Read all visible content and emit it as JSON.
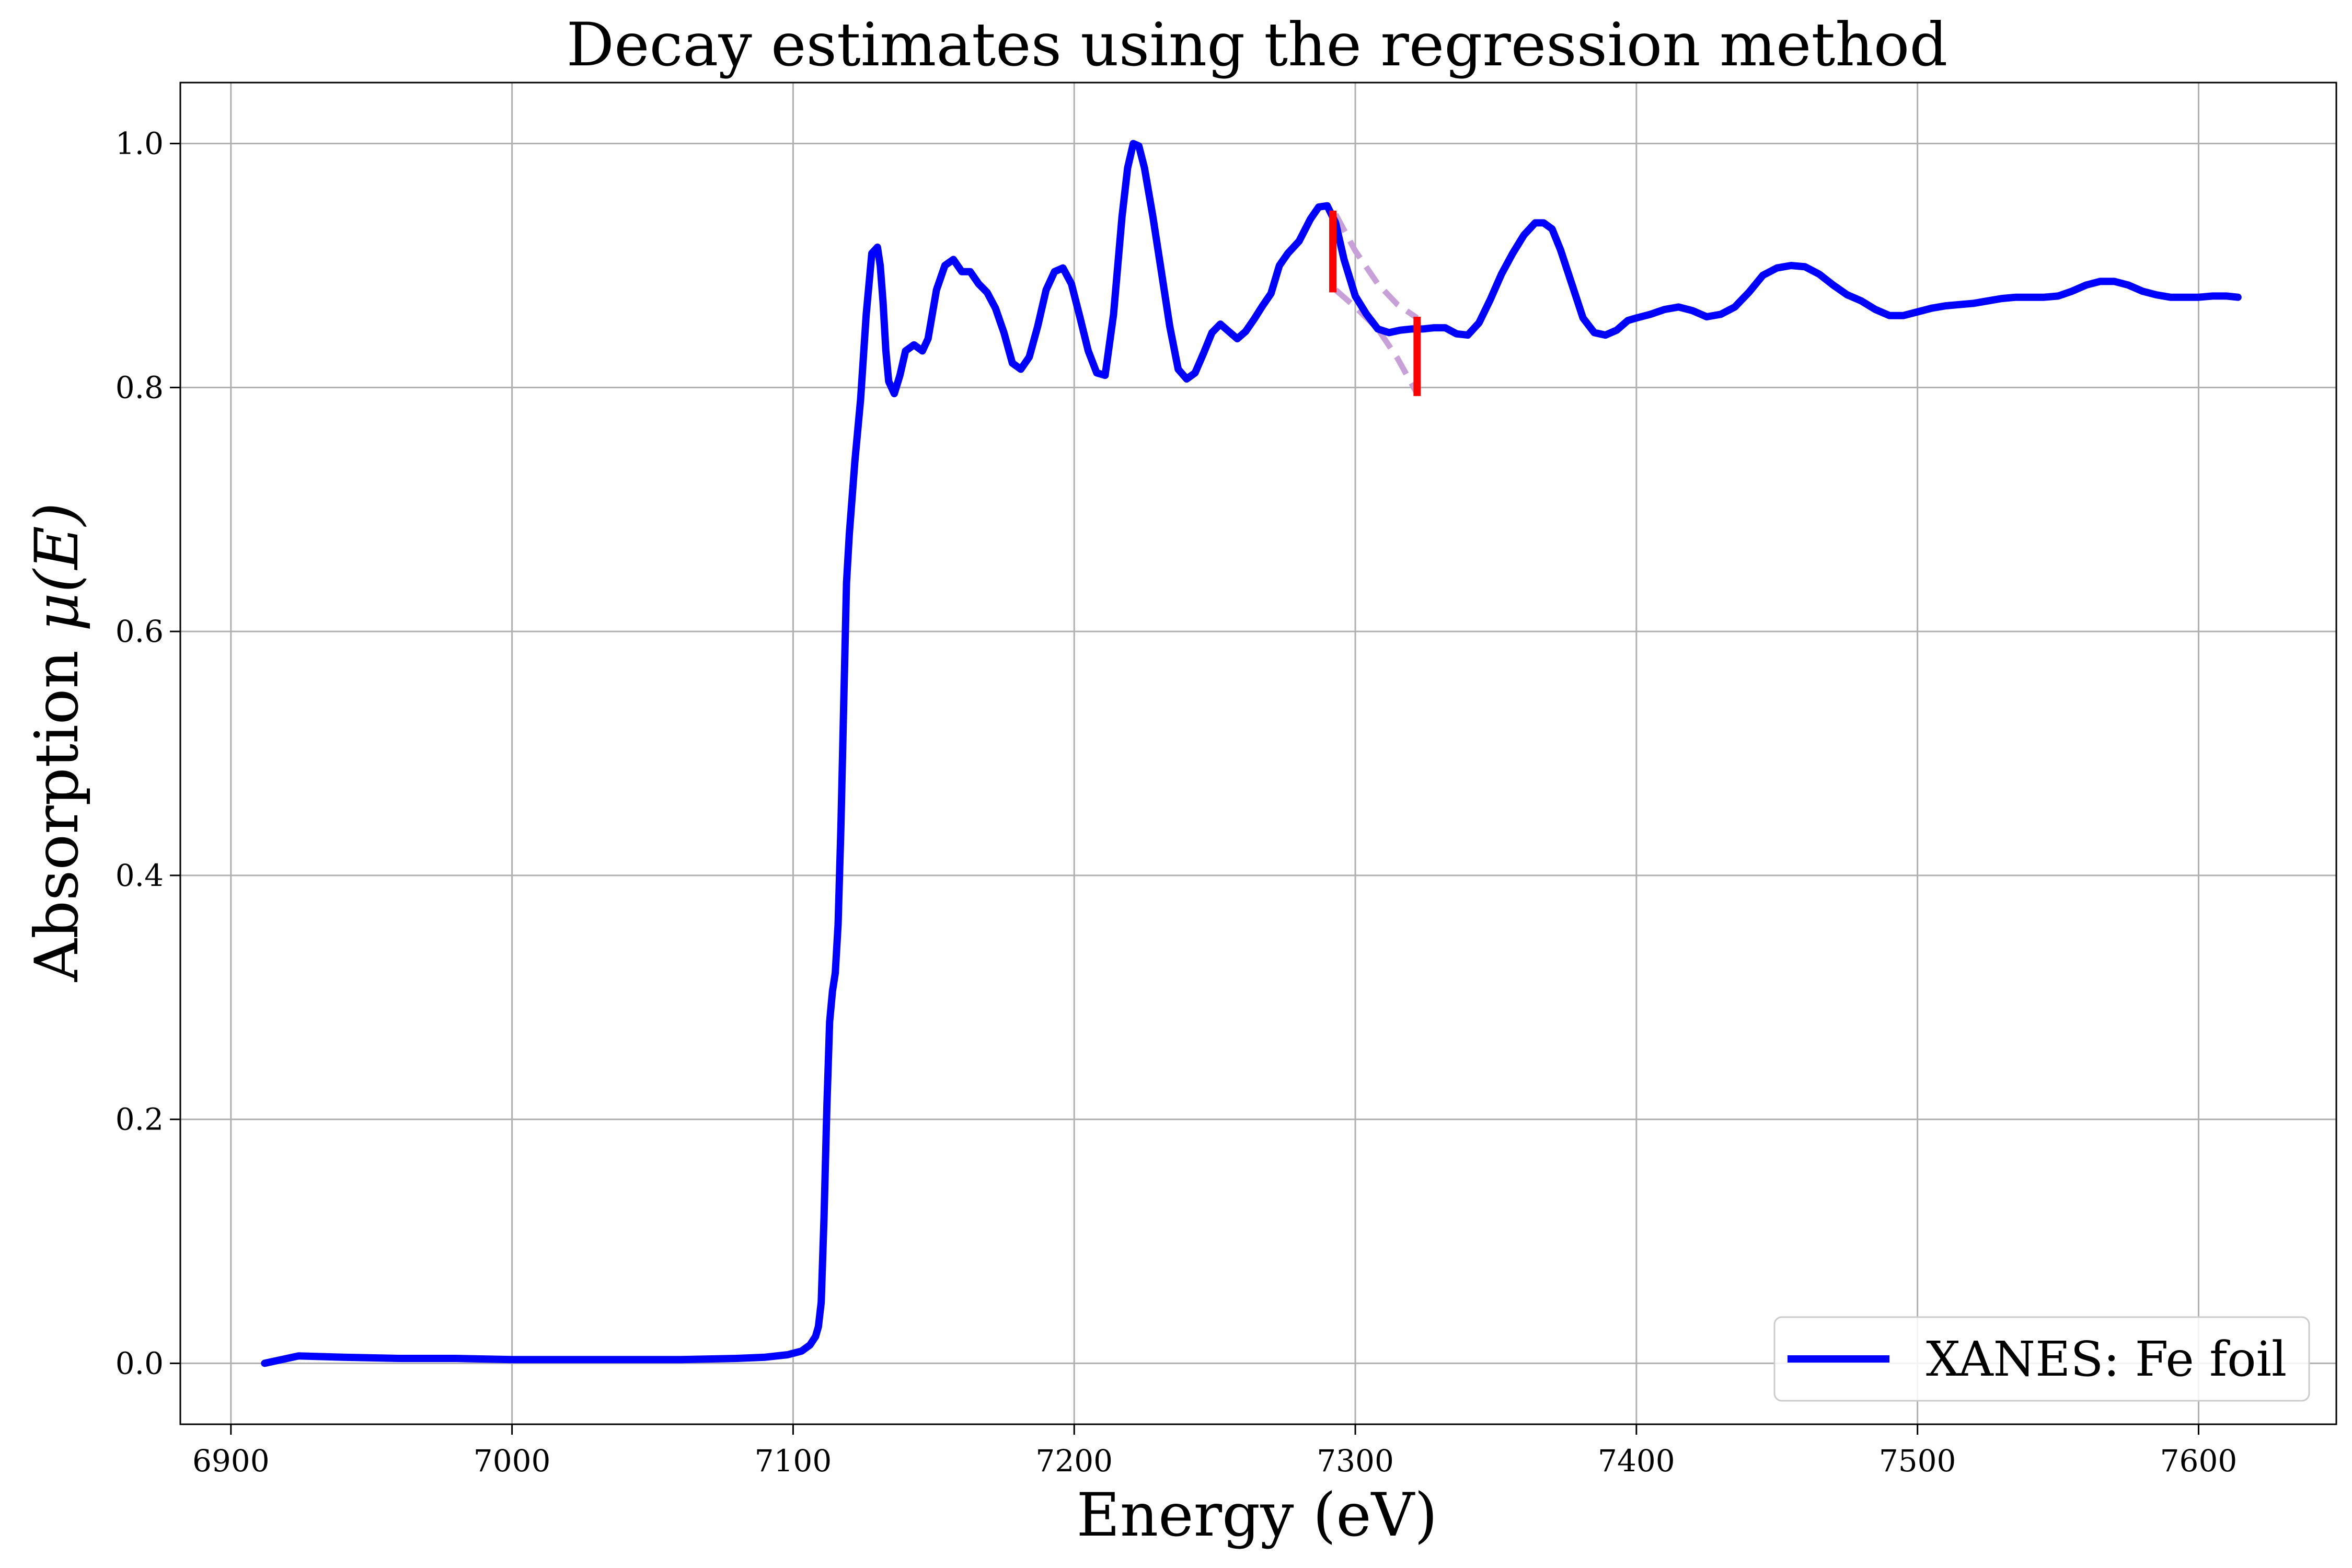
{
  "chart_data": {
    "type": "line",
    "title": "Decay estimates using the regression method",
    "xlabel": "Energy (eV)",
    "ylabel_text": "Absorption ",
    "ylabel_math": "μ(E)",
    "xlim": [
      6882,
      7649
    ],
    "ylim": [
      -0.05,
      1.05
    ],
    "xticks": [
      6900,
      7000,
      7100,
      7200,
      7300,
      7400,
      7500,
      7600
    ],
    "yticks": [
      0.0,
      0.2,
      0.4,
      0.6,
      0.8,
      1.0
    ],
    "grid": true,
    "legend_position": "lower-right",
    "series": [
      {
        "name": "XANES: Fe foil",
        "color": "#0000ff",
        "style": "solid",
        "x": [
          6912,
          6924,
          6940,
          6960,
          6980,
          7000,
          7020,
          7040,
          7060,
          7080,
          7090,
          7098,
          7103,
          7106,
          7108,
          7109,
          7110,
          7111,
          7112,
          7113,
          7114,
          7115,
          7116,
          7117,
          7118,
          7119,
          7120,
          7122,
          7124,
          7126,
          7128,
          7130,
          7131,
          7132,
          7133,
          7134,
          7136,
          7138,
          7140,
          7143,
          7146,
          7148,
          7151,
          7154,
          7157,
          7160,
          7163,
          7166,
          7169,
          7172,
          7175,
          7178,
          7181,
          7184,
          7187,
          7190,
          7193,
          7196,
          7199,
          7202,
          7205,
          7208,
          7211,
          7214,
          7217,
          7219,
          7221,
          7223,
          7225,
          7228,
          7231,
          7234,
          7237,
          7240,
          7243,
          7246,
          7249,
          7252,
          7255,
          7258,
          7261,
          7264,
          7267,
          7270,
          7273,
          7276,
          7280,
          7284,
          7287,
          7290,
          7293,
          7296,
          7300,
          7304,
          7308,
          7312,
          7316,
          7320,
          7324,
          7328,
          7332,
          7336,
          7340,
          7344,
          7348,
          7352,
          7356,
          7360,
          7364,
          7367,
          7370,
          7373,
          7377,
          7381,
          7385,
          7389,
          7393,
          7397,
          7400,
          7405,
          7410,
          7415,
          7420,
          7425,
          7430,
          7435,
          7440,
          7445,
          7450,
          7455,
          7460,
          7465,
          7470,
          7475,
          7480,
          7485,
          7490,
          7495,
          7500,
          7505,
          7510,
          7515,
          7520,
          7525,
          7530,
          7535,
          7540,
          7545,
          7550,
          7555,
          7560,
          7565,
          7570,
          7575,
          7580,
          7585,
          7590,
          7595,
          7600,
          7605,
          7610,
          7614
        ],
        "y": [
          0.0,
          0.006,
          0.005,
          0.004,
          0.004,
          0.003,
          0.003,
          0.003,
          0.003,
          0.004,
          0.005,
          0.007,
          0.01,
          0.015,
          0.022,
          0.03,
          0.05,
          0.12,
          0.21,
          0.28,
          0.305,
          0.32,
          0.36,
          0.44,
          0.54,
          0.64,
          0.68,
          0.74,
          0.79,
          0.86,
          0.91,
          0.915,
          0.9,
          0.87,
          0.83,
          0.805,
          0.795,
          0.81,
          0.83,
          0.835,
          0.83,
          0.84,
          0.88,
          0.9,
          0.905,
          0.895,
          0.895,
          0.885,
          0.878,
          0.865,
          0.845,
          0.82,
          0.815,
          0.825,
          0.85,
          0.88,
          0.895,
          0.898,
          0.885,
          0.858,
          0.83,
          0.812,
          0.81,
          0.86,
          0.94,
          0.98,
          1.0,
          0.998,
          0.98,
          0.94,
          0.895,
          0.85,
          0.815,
          0.807,
          0.812,
          0.828,
          0.845,
          0.852,
          0.846,
          0.84,
          0.846,
          0.856,
          0.867,
          0.877,
          0.9,
          0.91,
          0.92,
          0.938,
          0.948,
          0.949,
          0.935,
          0.905,
          0.875,
          0.86,
          0.848,
          0.845,
          0.847,
          0.848,
          0.848,
          0.849,
          0.849,
          0.844,
          0.843,
          0.853,
          0.872,
          0.893,
          0.91,
          0.925,
          0.935,
          0.935,
          0.93,
          0.913,
          0.885,
          0.857,
          0.845,
          0.843,
          0.847,
          0.855,
          0.857,
          0.86,
          0.864,
          0.866,
          0.863,
          0.858,
          0.86,
          0.866,
          0.878,
          0.892,
          0.898,
          0.9,
          0.899,
          0.893,
          0.884,
          0.876,
          0.871,
          0.864,
          0.859,
          0.859,
          0.862,
          0.865,
          0.867,
          0.868,
          0.869,
          0.871,
          0.873,
          0.874,
          0.874,
          0.874,
          0.875,
          0.879,
          0.884,
          0.887,
          0.887,
          0.884,
          0.879,
          0.876,
          0.874,
          0.874,
          0.874,
          0.875,
          0.875,
          0.874
        ]
      },
      {
        "name": "",
        "color": "#c8a0d8",
        "style": "dashed",
        "x": [
          7293,
          7300,
          7308,
          7315,
          7322
        ],
        "y": [
          0.942,
          0.912,
          0.885,
          0.868,
          0.857
        ]
      },
      {
        "name": "",
        "color": "#c8a0d8",
        "style": "dashed",
        "x": [
          7293,
          7300,
          7308,
          7315,
          7322
        ],
        "y": [
          0.88,
          0.866,
          0.848,
          0.824,
          0.795
        ]
      }
    ],
    "error_bars": [
      {
        "x": 7292,
        "y_low": 0.878,
        "y_high": 0.945,
        "color": "#ff0000"
      },
      {
        "x": 7322,
        "y_low": 0.793,
        "y_high": 0.858,
        "color": "#ff0000"
      }
    ]
  }
}
